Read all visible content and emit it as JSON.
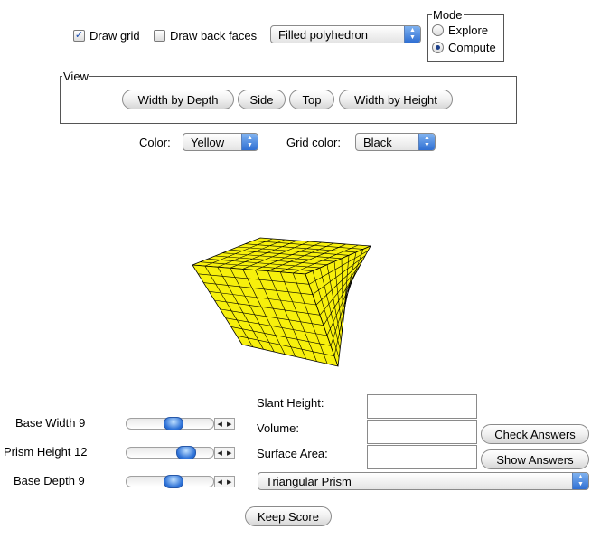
{
  "controls": {
    "draw_grid": {
      "label": "Draw grid",
      "checked": true
    },
    "draw_back_faces": {
      "label": "Draw back faces",
      "checked": false
    },
    "render_mode": {
      "selected": "Filled polyhedron"
    }
  },
  "mode": {
    "legend": "Mode",
    "options": [
      {
        "label": "Explore",
        "selected": false
      },
      {
        "label": "Compute",
        "selected": true
      }
    ]
  },
  "view": {
    "legend": "View",
    "buttons": [
      "Width by Depth",
      "Side",
      "Top",
      "Width by Height"
    ]
  },
  "colors": {
    "color_label": "Color:",
    "color_value": "Yellow",
    "grid_color_label": "Grid color:",
    "grid_color_value": "Black",
    "fill_hex": "#f7f00c",
    "grid_hex": "#000000"
  },
  "sliders": [
    {
      "label": "Base Width 9",
      "value": 9
    },
    {
      "label": "Prism Height 12",
      "value": 12
    },
    {
      "label": "Base Depth 9",
      "value": 9
    }
  ],
  "answers": {
    "slant_height_label": "Slant Height:",
    "volume_label": "Volume:",
    "surface_area_label": "Surface Area:",
    "slant_height_value": "",
    "volume_value": "",
    "surface_area_value": "",
    "check_button": "Check Answers",
    "show_button": "Show Answers"
  },
  "shape": {
    "selected": "Triangular Prism"
  },
  "keep_score": "Keep Score"
}
